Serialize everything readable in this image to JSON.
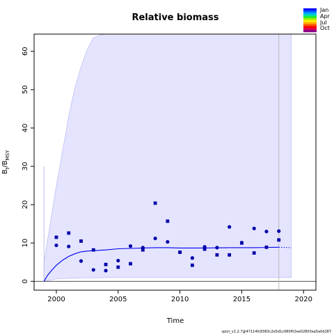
{
  "chart_data": {
    "type": "scatter",
    "title": "Relative biomass",
    "xlabel": "Time",
    "ylabel": {
      "base": "B",
      "sub1": "t",
      "sep": "/B",
      "sub2": "MSY"
    },
    "xlim": [
      1998.2,
      2021.0
    ],
    "ylim": [
      -2.3,
      64.5
    ],
    "x_ticks": [
      2000,
      2005,
      2010,
      2015,
      2020
    ],
    "y_ticks": [
      0,
      10,
      20,
      30,
      40,
      50,
      60
    ],
    "points_circle": {
      "x": [
        2000,
        2001,
        2002,
        2003,
        2004,
        2005,
        2006,
        2007,
        2008,
        2009,
        2010,
        2011,
        2012,
        2013,
        2014,
        2015,
        2016,
        2017,
        2018
      ],
      "y": [
        9.4,
        9.1,
        5.3,
        3.0,
        2.8,
        5.4,
        9.2,
        8.8,
        11.2,
        10.3,
        7.6,
        6.1,
        9.0,
        8.8,
        14.2,
        10.1,
        13.8,
        13.0,
        13.1
      ]
    },
    "points_square": {
      "x": [
        2000,
        2001,
        2002,
        2003,
        2004,
        2005,
        2006,
        2007,
        2008,
        2009,
        2010,
        2011,
        2012,
        2013,
        2014,
        2015,
        2016,
        2017,
        2018
      ],
      "y": [
        11.5,
        12.6,
        10.5,
        8.2,
        4.4,
        3.7,
        4.6,
        8.2,
        20.4,
        15.7,
        7.6,
        4.2,
        8.4,
        6.9,
        6.9,
        10.0,
        7.4,
        8.9,
        10.8
      ]
    },
    "median_line": {
      "x": [
        1999.0,
        1999.3,
        1999.6,
        2000.0,
        2000.5,
        2001.0,
        2001.5,
        2002.0,
        2002.5,
        2003.0,
        2003.5,
        2004.0,
        2005.0,
        2006.0,
        2007.0,
        2008.0,
        2009.0,
        2010.0,
        2012.0,
        2014.0,
        2016.0,
        2018.0
      ],
      "y": [
        0.0,
        1.6,
        2.8,
        4.2,
        5.5,
        6.5,
        7.2,
        7.7,
        7.9,
        8.0,
        8.1,
        8.2,
        8.5,
        8.6,
        8.7,
        8.8,
        8.8,
        8.7,
        8.7,
        8.8,
        8.8,
        8.9
      ]
    },
    "median_projection": {
      "x": [
        2018.0,
        2019.0
      ],
      "y": [
        8.9,
        8.8
      ]
    },
    "ci_upper": {
      "x": [
        1999.0,
        1999.5,
        2000.0,
        2000.5,
        2001.0,
        2001.5,
        2002.0,
        2002.5,
        2003.0,
        2003.5,
        2004.0,
        2004.3
      ],
      "y": [
        5.0,
        15.0,
        25.0,
        34.0,
        43.0,
        50.5,
        56.0,
        60.5,
        63.5,
        64.2,
        64.5,
        64.5
      ]
    },
    "ci_upper_plateau_end": 2019.0,
    "ci_lower": {
      "x": [
        1999.0,
        1999.5,
        2000.0,
        2001.0,
        2002.0,
        2005.0,
        2010.0,
        2015.0,
        2019.0
      ],
      "y": [
        0.0,
        0.3,
        0.6,
        0.8,
        0.9,
        1.0,
        1.0,
        1.0,
        1.0
      ]
    },
    "initial_spike": {
      "x": 1999.0,
      "y": 30.0
    },
    "hline": 0.0,
    "vline": 2018.0,
    "colors": {
      "ci_fill": "#e4e4ff",
      "ci_edge": "#b0b0ee",
      "median": "#0000ee",
      "points": "#0000aa",
      "vline": "#bbbbbb",
      "hline": "#333333"
    },
    "legend": {
      "placement": "top-right",
      "labels": [
        "Jan",
        "Apr",
        "Jul",
        "Oct"
      ],
      "gradient_colors": [
        "#0000ff",
        "#0055ff",
        "#00aaff",
        "#00ddaa",
        "#22ee22",
        "#aaee00",
        "#ffee00",
        "#ffaa00",
        "#ff5500",
        "#ff0000",
        "#dd0055",
        "#880088"
      ]
    }
  },
  "footer": {
    "text": "spict_v1.2.7@47114fc8383c2e5d1c080f02ee02803ea5a0d287"
  }
}
